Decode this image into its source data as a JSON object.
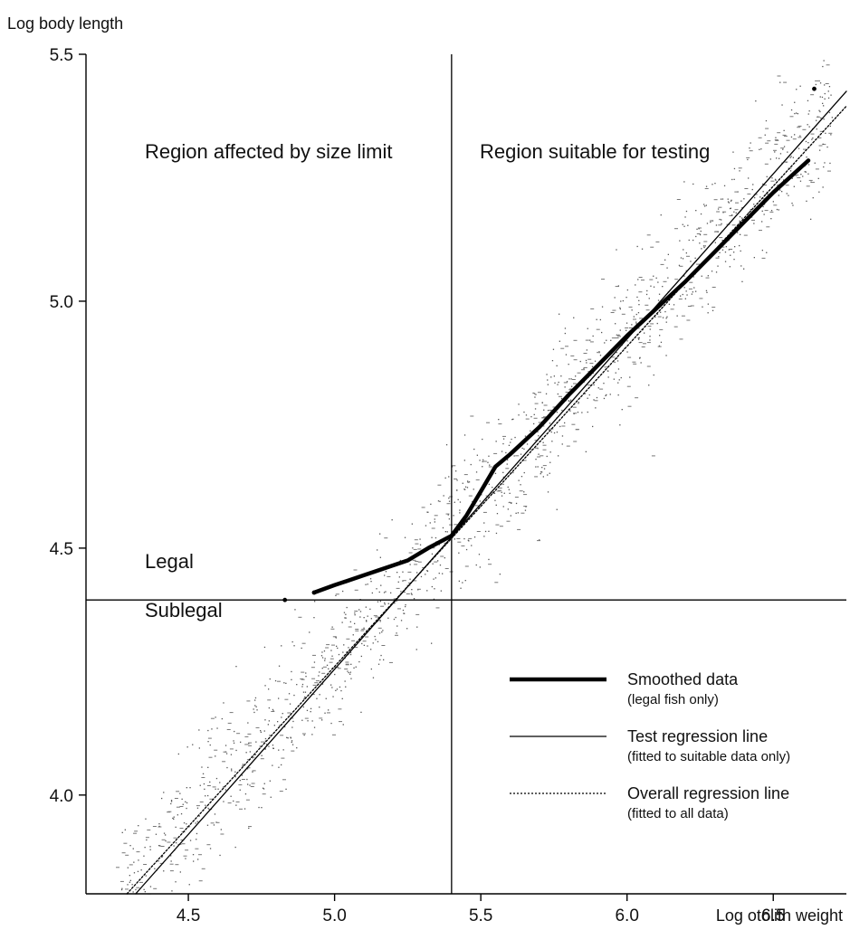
{
  "chart_data": {
    "type": "scatter",
    "xlabel": "Log otolith weight",
    "ylabel": "Log body length",
    "xlim": [
      4.15,
      6.75
    ],
    "ylim": [
      3.8,
      5.5
    ],
    "xticks": [
      "4.5",
      "5.0",
      "5.5",
      "6.0",
      "6.5"
    ],
    "yticks": [
      "4.0",
      "4.5",
      "5.0",
      "5.5"
    ],
    "grid": false,
    "reference_lines": {
      "vertical_x": 5.4,
      "horizontal_y": 4.395
    },
    "regions": {
      "left_top": "Region affected by size limit",
      "right_top": "Region suitable for testing",
      "above_limit": "Legal",
      "below_limit": "Sublegal"
    },
    "series": [
      {
        "name": "Smoothed data",
        "note": "(legal fish only)",
        "style": "thick-solid",
        "x": [
          4.93,
          5.0,
          5.1,
          5.25,
          5.32,
          5.4,
          5.45,
          5.5,
          5.55,
          5.6,
          5.7,
          5.8,
          5.9,
          6.0,
          6.1,
          6.2,
          6.3,
          6.4,
          6.5,
          6.62
        ],
        "y": [
          4.41,
          4.425,
          4.445,
          4.475,
          4.5,
          4.525,
          4.565,
          4.615,
          4.665,
          4.69,
          4.745,
          4.81,
          4.87,
          4.93,
          4.985,
          5.04,
          5.1,
          5.16,
          5.22,
          5.285
        ]
      },
      {
        "name": "Test regression line",
        "note": "(fitted to suitable data only)",
        "style": "thin-solid",
        "x": [
          4.32,
          6.75
        ],
        "y": [
          3.8,
          5.425
        ]
      },
      {
        "name": "Overall regression line",
        "note": "(fitted to all data)",
        "style": "dotted",
        "x": [
          4.29,
          6.75
        ],
        "y": [
          3.8,
          5.395
        ]
      }
    ],
    "isolated_points": [
      {
        "x": 4.83,
        "y": 4.395
      },
      {
        "x": 4.93,
        "y": 4.41
      },
      {
        "x": 6.64,
        "y": 5.43
      }
    ],
    "scatter_model": {
      "n_points": 1600,
      "x_range": [
        4.25,
        6.7
      ],
      "slope": 0.652,
      "intercept": 1.02,
      "noise_sd": 0.07,
      "seed": 7
    }
  }
}
